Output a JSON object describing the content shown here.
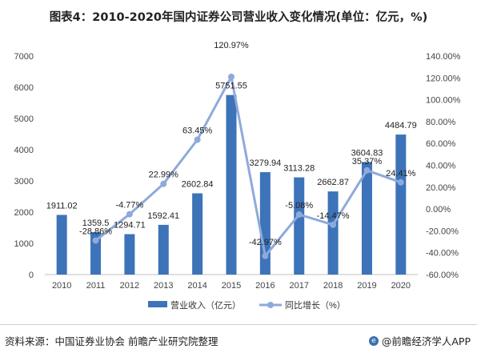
{
  "title": "图表4：2010-2020年国内证券公司营业收入变化情况(单位：亿元，%)",
  "colors": {
    "bar": "#3d73b8",
    "line": "#8eaadb",
    "axis_text": "#444444"
  },
  "chart_data": {
    "type": "bar",
    "categories": [
      "2010",
      "2011",
      "2012",
      "2013",
      "2014",
      "2015",
      "2016",
      "2017",
      "2018",
      "2019",
      "2020"
    ],
    "series": [
      {
        "name": "营业收入（亿元）",
        "type": "bar",
        "axis": "left",
        "values": [
          1911.02,
          1359.5,
          1294.71,
          1592.41,
          2602.84,
          5751.55,
          3279.94,
          3113.28,
          2662.87,
          3604.83,
          4484.79
        ],
        "labels": [
          "1911.02",
          "1359.5",
          "1294.71",
          "1592.41",
          "2602.84",
          "5751.55",
          "3279.94",
          "3113.28",
          "2662.87",
          "3604.83",
          "4484.79"
        ]
      },
      {
        "name": "同比增长（%）",
        "type": "line",
        "axis": "right",
        "values": [
          null,
          -28.86,
          -4.77,
          22.99,
          63.45,
          120.97,
          -42.97,
          -5.08,
          -14.47,
          35.37,
          24.41
        ],
        "labels": [
          "",
          "-28.86%",
          "-4.77%",
          "22.99%",
          "63.45%",
          "120.97%",
          "-42.97%",
          "-5.08%",
          "-14.47%",
          "35.37%",
          "24.41%"
        ]
      }
    ],
    "ylim_left": [
      0,
      7000
    ],
    "yticks_left": [
      "0",
      "1000",
      "2000",
      "3000",
      "4000",
      "5000",
      "6000",
      "7000"
    ],
    "ylim_right": [
      -60,
      140
    ],
    "yticks_right": [
      "-60.00%",
      "-40.00%",
      "-20.00%",
      "0.00%",
      "20.00%",
      "40.00%",
      "60.00%",
      "80.00%",
      "100.00%",
      "120.00%",
      "140.00%"
    ],
    "legend_position": "bottom",
    "grid": false
  },
  "footer": {
    "source": "资料来源：中国证券业协会 前瞻产业研究院整理",
    "brand_icon": "e",
    "brand": "@前瞻经济学人APP"
  }
}
